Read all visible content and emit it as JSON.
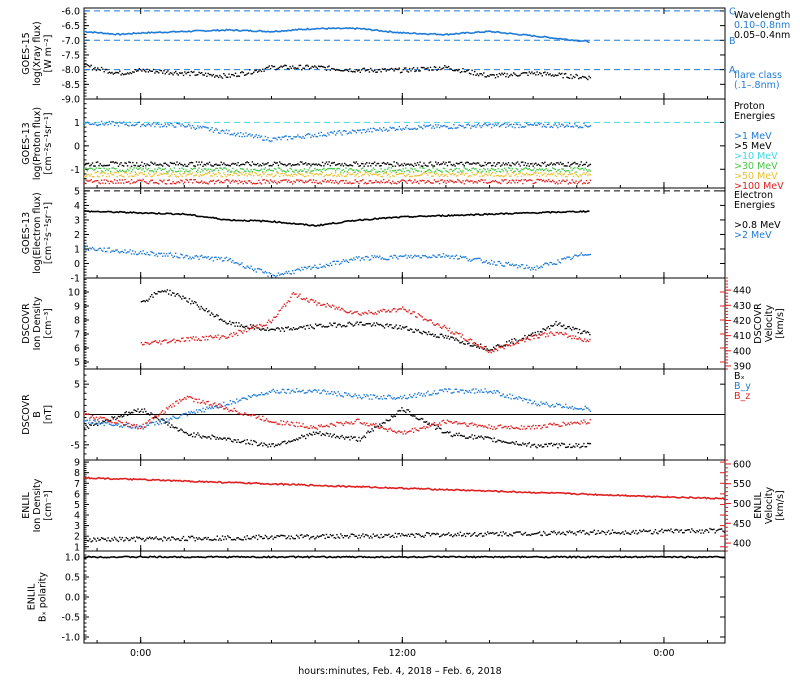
{
  "chart_data": {
    "type": "scatter",
    "xlabel": "hours:minutes, Feb.  4, 2018 – Feb.  6, 2018",
    "x_ticks": [
      "0:00",
      "12:00",
      "0:00"
    ],
    "x_tick_hours": [
      0,
      12,
      24
    ],
    "x_range_hours": [
      -2.6,
      26.8
    ],
    "panels": [
      {
        "id": "goes15-xray",
        "ylabel": [
          "GOES-15",
          "log(Xray flux)",
          "[W m⁻²]"
        ],
        "ylim": [
          -9.0,
          -5.9
        ],
        "yticks": [
          -9.0,
          -8.5,
          -8.0,
          -7.5,
          -7.0,
          -6.5,
          -6.0
        ],
        "ytick_labels": [
          "-9.0",
          "-8.5",
          "-8.0",
          "-7.5",
          "-7.0",
          "-6.5",
          "-6.0"
        ],
        "ref_lines": [
          {
            "y": -6.0,
            "label": "C",
            "color": "#1f7bd8"
          },
          {
            "y": -7.0,
            "label": "B",
            "color": "#1f7bd8"
          },
          {
            "y": -8.0,
            "label": "A",
            "color": "#1f7bd8"
          }
        ],
        "legend": [
          {
            "text": "Wavelength",
            "color": "#000000"
          },
          {
            "text": "0.10–0.8nm",
            "color": "#1f7bd8"
          },
          {
            "text": "0.05–0.4nm",
            "color": "#000000"
          },
          {
            "text": "",
            "color": "#000000"
          },
          {
            "text": "",
            "color": "#000000"
          },
          {
            "text": "",
            "color": "#000000"
          },
          {
            "text": "flare class",
            "color": "#1f7bd8"
          },
          {
            "text": "(.1–.8nm)",
            "color": "#1f7bd8"
          }
        ],
        "series": [
          {
            "color": "#1f7bd8",
            "style": "line",
            "x": [
              -2.6,
              -1,
              0,
              2,
              4,
              6,
              8,
              10,
              12,
              14,
              16,
              18,
              20.6
            ],
            "y": [
              -6.7,
              -6.8,
              -6.75,
              -6.7,
              -6.65,
              -6.7,
              -6.6,
              -6.6,
              -6.75,
              -6.8,
              -6.7,
              -6.85,
              -7.05
            ]
          },
          {
            "color": "#000000",
            "style": "dots",
            "x": [
              -2.6,
              -1,
              0,
              2,
              4,
              6,
              8,
              10,
              12,
              14,
              16,
              18,
              20.6
            ],
            "y": [
              -7.85,
              -8.1,
              -8.0,
              -8.1,
              -8.2,
              -7.9,
              -7.9,
              -8.0,
              -8.0,
              -7.9,
              -8.2,
              -8.1,
              -8.25
            ]
          }
        ]
      },
      {
        "id": "goes13-proton",
        "ylabel": [
          "GOES-13",
          "log(Proton flux)",
          "[cm⁻²s⁻¹sr⁻¹]"
        ],
        "ylim": [
          -1.8,
          2.0
        ],
        "yticks": [
          -1,
          0,
          1
        ],
        "ytick_labels": [
          "-1",
          "0",
          "1"
        ],
        "ref_lines": [
          {
            "y": 1.0,
            "label": "",
            "color": "#40d8e8"
          }
        ],
        "legend": [
          {
            "text": "Proton",
            "color": "#000000"
          },
          {
            "text": "Energies",
            "color": "#000000"
          },
          {
            "text": "",
            "color": "#000000"
          },
          {
            "text": ">1 MeV",
            "color": "#1f7bd8"
          },
          {
            "text": ">5 MeV",
            "color": "#000000"
          },
          {
            "text": ">10 MeV",
            "color": "#40d8e8"
          },
          {
            "text": ">30 MeV",
            "color": "#48c848"
          },
          {
            "text": ">50 MeV",
            "color": "#e8c030"
          },
          {
            "text": ">100 MeV",
            "color": "#e02020"
          }
        ],
        "series": [
          {
            "color": "#1f7bd8",
            "style": "dots",
            "x": [
              -2.6,
              2,
              6,
              8,
              12,
              16,
              20.6
            ],
            "y": [
              1.0,
              0.9,
              0.3,
              0.5,
              0.8,
              0.9,
              0.9
            ]
          },
          {
            "color": "#000000",
            "style": "dots",
            "x": [
              -2.6,
              20.6
            ],
            "y": [
              -0.75,
              -0.75
            ]
          },
          {
            "color": "#48c848",
            "style": "dots",
            "x": [
              -2.6,
              20.6
            ],
            "y": [
              -1.0,
              -1.0
            ]
          },
          {
            "color": "#e8c030",
            "style": "dots",
            "x": [
              -2.6,
              20.6
            ],
            "y": [
              -1.2,
              -1.2
            ]
          },
          {
            "color": "#e02020",
            "style": "dots",
            "x": [
              -2.6,
              20.6
            ],
            "y": [
              -1.5,
              -1.5
            ]
          }
        ]
      },
      {
        "id": "goes13-electron",
        "ylabel": [
          "GOES-13",
          "log(Electron flux)",
          "[cm⁻²s⁻¹sr⁻¹]"
        ],
        "ylim": [
          -1,
          5.2
        ],
        "yticks": [
          -1,
          0,
          1,
          2,
          3,
          4,
          5
        ],
        "ytick_labels": [
          "-1",
          "0",
          "1",
          "2",
          "3",
          "4",
          "5"
        ],
        "ref_lines": [
          {
            "y": 5.0,
            "label": "",
            "color": "#000000"
          }
        ],
        "legend": [
          {
            "text": "Electron",
            "color": "#000000"
          },
          {
            "text": "Energies",
            "color": "#000000"
          },
          {
            "text": "",
            "color": "#000000"
          },
          {
            "text": ">0.8 MeV",
            "color": "#000000"
          },
          {
            "text": ">2 MeV",
            "color": "#1f7bd8"
          }
        ],
        "series": [
          {
            "color": "#000000",
            "style": "line",
            "x": [
              -2.6,
              2,
              4,
              6,
              8,
              10,
              12,
              16,
              20.6
            ],
            "y": [
              3.6,
              3.4,
              3.0,
              2.9,
              2.6,
              3.0,
              3.2,
              3.4,
              3.6
            ]
          },
          {
            "color": "#1f7bd8",
            "style": "dots",
            "x": [
              -2.6,
              4,
              6,
              10,
              14,
              18,
              20.6
            ],
            "y": [
              1.1,
              0.3,
              -0.8,
              0.4,
              0.6,
              -0.3,
              0.8
            ]
          }
        ]
      },
      {
        "id": "dscovr-density-velocity",
        "ylabel": [
          "DSCOVR",
          "Ion Density",
          "[cm⁻³]"
        ],
        "ylim": [
          4.5,
          11
        ],
        "yticks": [
          5,
          6,
          7,
          8,
          9,
          10
        ],
        "ytick_labels": [
          "5",
          "6",
          "7",
          "8",
          "9",
          "10"
        ],
        "right_axis": {
          "ylabel": [
            "DSCOVR",
            "Velocity",
            "[km/s]"
          ],
          "ylim": [
            388,
            448
          ],
          "yticks": [
            390,
            400,
            410,
            420,
            430,
            440
          ],
          "ytick_labels": [
            "390",
            "400",
            "410",
            "420",
            "430",
            "440"
          ],
          "color": "#e02020"
        },
        "legend": [],
        "series": [
          {
            "color": "#000000",
            "style": "dots",
            "axis": "left",
            "x": [
              0,
              1,
              2,
              4,
              6,
              8,
              10,
              12,
              14,
              16,
              18,
              19,
              20.6
            ],
            "y": [
              9.3,
              10.2,
              9.6,
              7.8,
              7.3,
              7.6,
              7.8,
              7.5,
              6.8,
              6.0,
              7.0,
              7.8,
              7.0
            ]
          },
          {
            "color": "#e02020",
            "style": "dots",
            "axis": "right",
            "x": [
              0,
              2,
              4,
              6,
              7,
              8,
              10,
              12,
              14,
              16,
              18,
              19,
              20.6
            ],
            "y": [
              405,
              408,
              410,
              420,
              438,
              432,
              425,
              428,
              415,
              400,
              410,
              412,
              407
            ]
          }
        ]
      },
      {
        "id": "dscovr-b",
        "ylabel": [
          "DSCOVR",
          "B",
          "[nT]"
        ],
        "ylim": [
          -7.5,
          7.5
        ],
        "yticks": [
          -5,
          0,
          5
        ],
        "ytick_labels": [
          "-5",
          "0",
          "5"
        ],
        "zero_line": true,
        "legend": [
          {
            "text": "Bₓ",
            "color": "#000000"
          },
          {
            "text": "B_y",
            "color": "#1f7bd8"
          },
          {
            "text": "B_z",
            "color": "#e02020"
          }
        ],
        "series": [
          {
            "color": "#000000",
            "style": "dots",
            "x": [
              -2.6,
              0,
              2,
              4,
              6,
              8,
              10,
              12,
              14,
              16,
              18,
              20.6
            ],
            "y": [
              -2,
              1,
              -3,
              -4,
              -5,
              -3,
              -4,
              1,
              -3,
              -4,
              -5,
              -5
            ]
          },
          {
            "color": "#1f7bd8",
            "style": "dots",
            "x": [
              -2.6,
              0,
              2,
              4,
              6,
              8,
              10,
              12,
              14,
              16,
              18,
              20.6
            ],
            "y": [
              -1,
              -2,
              0,
              2,
              4,
              4,
              3,
              3,
              4,
              4,
              2,
              1
            ]
          },
          {
            "color": "#e02020",
            "style": "dots",
            "x": [
              -2.6,
              0,
              2,
              4,
              6,
              8,
              10,
              12,
              14,
              16,
              18,
              20.6
            ],
            "y": [
              0,
              -2,
              3,
              1,
              -1,
              -2,
              -1,
              -3,
              -1,
              -2,
              -2,
              -1
            ]
          }
        ]
      },
      {
        "id": "enlil-density-velocity",
        "ylabel": [
          "ENLIL",
          "Ion Density",
          "[cm⁻³]"
        ],
        "ylim": [
          0.6,
          9.2
        ],
        "yticks": [
          1,
          2,
          3,
          4,
          5,
          6,
          7,
          8,
          9
        ],
        "ytick_labels": [
          "1",
          "2",
          "3",
          "4",
          "5",
          "6",
          "7",
          "8",
          "9"
        ],
        "right_axis": {
          "ylabel": [
            "ENLIL",
            "Velocity",
            "[km/s]"
          ],
          "ylim": [
            380,
            610
          ],
          "yticks": [
            400,
            450,
            500,
            550,
            600
          ],
          "ytick_labels": [
            "400",
            "450",
            "500",
            "550",
            "600"
          ],
          "color": "#e02020"
        },
        "legend": [],
        "series": [
          {
            "color": "#e02020",
            "style": "line",
            "axis": "right",
            "x": [
              -2.6,
              26.8
            ],
            "y": [
              565,
              512
            ]
          },
          {
            "color": "#000000",
            "style": "dots",
            "axis": "left",
            "x": [
              -2.6,
              26.8
            ],
            "y": [
              1.7,
              2.6
            ]
          }
        ]
      },
      {
        "id": "enlil-bx-polarity",
        "ylabel": [
          "ENLIL",
          "Bₓ polarity"
        ],
        "ylim": [
          -1.15,
          1.15
        ],
        "yticks": [
          -1.0,
          -0.5,
          0.0,
          0.5,
          1.0
        ],
        "ytick_labels": [
          "-1.0",
          "-0.5",
          "0.0",
          "0.5",
          "1.0"
        ],
        "legend": [],
        "series": [
          {
            "color": "#000000",
            "style": "line",
            "x": [
              -2.6,
              26.8
            ],
            "y": [
              1.0,
              1.0
            ]
          }
        ]
      }
    ]
  }
}
